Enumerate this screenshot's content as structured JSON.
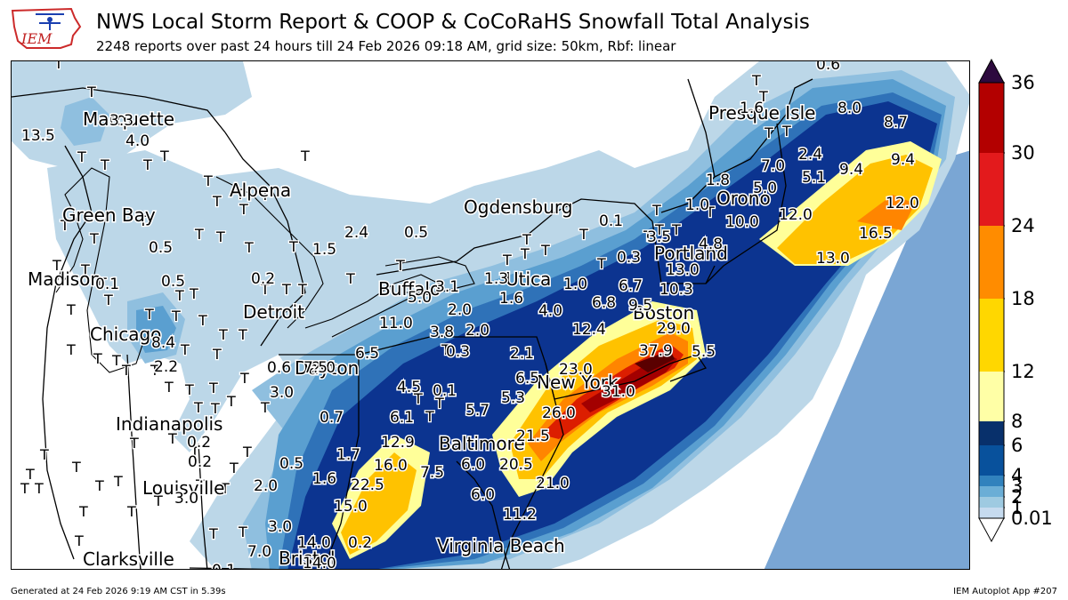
{
  "header": {
    "logo_text": "IEM",
    "title": "NWS Local Storm Report & COOP & CoCoRaHS Snowfall Total Analysis",
    "subtitle": "2248 reports over past 24 hours till 24 Feb 2026 09:18 AM, grid size: 50km, Rbf: linear"
  },
  "footer": {
    "generated": "Generated at 24 Feb 2026 9:19 AM CST in 5.39s",
    "app": "IEM Autoplot App #207"
  },
  "colorbar": {
    "labels": [
      "36",
      "30",
      "24",
      "18",
      "12",
      "8",
      "6",
      "4",
      "3",
      "2",
      "1",
      "0.01"
    ],
    "colors": [
      "#c6dbef",
      "#9ecae1",
      "#6baed6",
      "#3182bd",
      "#08519c",
      "#08306b",
      "#ffffa6",
      "#ffd700",
      "#ff8c00",
      "#e31a1c",
      "#b30000",
      "#67000d",
      "#2d0a3e"
    ]
  },
  "map": {
    "colors": {
      "ocean": "#7aa6d4",
      "c1": "#bcd7e8",
      "c2": "#8fbfdf",
      "c3": "#5a9fd0",
      "c4": "#2f72b8",
      "c5": "#0c3490",
      "c6": "#ffff99",
      "c7": "#ffc200",
      "c8": "#ff8500",
      "c9": "#dc1e00",
      "c10": "#a30000",
      "c11": "#5a0000"
    },
    "cities": [
      {
        "name": "Marquette"
      },
      {
        "name": "Alpena"
      },
      {
        "name": "Green Bay"
      },
      {
        "name": "Ogdensburg"
      },
      {
        "name": "Madison"
      },
      {
        "name": "Detroit"
      },
      {
        "name": "Buffalo"
      },
      {
        "name": "Utica"
      },
      {
        "name": "Chicago"
      },
      {
        "name": "Dayton"
      },
      {
        "name": "Indianapolis"
      },
      {
        "name": "Louisville"
      },
      {
        "name": "Clarksville"
      },
      {
        "name": "Bristol"
      },
      {
        "name": "Virginia Beach"
      },
      {
        "name": "Baltimore"
      },
      {
        "name": "New York"
      },
      {
        "name": "Boston"
      },
      {
        "name": "Portland"
      },
      {
        "name": "Orono"
      },
      {
        "name": "Presque Isle"
      }
    ],
    "values": [
      "0.6",
      "1.6",
      "8.0",
      "8.7",
      "2.4",
      "9.4",
      "9.4",
      "7.0",
      "5.1",
      "5.0",
      "1.8",
      "12.0",
      "1.0",
      "10.0",
      "12.0",
      "16.5",
      "13.0",
      "4.8",
      "3.5",
      "0.1",
      "0.3",
      "13.0",
      "10.3",
      "6.7",
      "9.5",
      "6.8",
      "29.0",
      "12.4",
      "37.9",
      "5.5",
      "23.0",
      "31.0",
      "26.0",
      "6.5",
      "5.3",
      "21.5",
      "5.7",
      "20.5",
      "21.0",
      "6.0",
      "6.0",
      "11.2",
      "1.0",
      "1.3",
      "1.6",
      "3.1",
      "5.0",
      "2.0",
      "4.0",
      "3.8",
      "2.0",
      "0.3",
      "2.1",
      "11.0",
      "6.5",
      "4.5",
      "0.1",
      "6.1",
      "12.9",
      "16.0",
      "7.5",
      "22.5",
      "15.0",
      "3.0",
      "14.0",
      "0.2",
      "14.0",
      "7.0",
      "3.0",
      "1.6",
      "1.7",
      "2.0",
      "0.2",
      "0.2",
      "0.5",
      "0.7",
      "3.0",
      "2.0",
      "0.6",
      "7.5",
      "2.2",
      "8.4",
      "0.5",
      "0.5",
      "1.5",
      "2.4",
      "0.5",
      "0.2",
      "13.5",
      "4.0",
      "3.3",
      "0.1",
      "0.1"
    ],
    "trace_mark": "T"
  }
}
